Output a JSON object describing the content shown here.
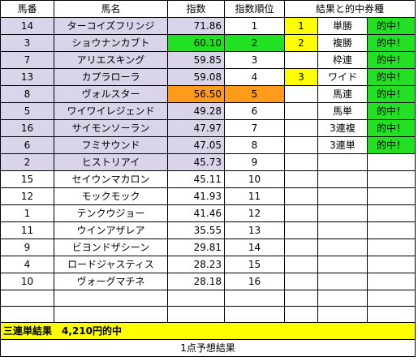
{
  "headers": {
    "number": "馬番",
    "name": "馬名",
    "index": "指数",
    "rank": "指数順位",
    "result": "結果と的中券種"
  },
  "horses": [
    {
      "no": "14",
      "name": "ターコイズフリンジ",
      "index": "71.86",
      "rank": "1",
      "highlight": "lav",
      "place": "1",
      "ticket": "単勝",
      "hit": "的中！"
    },
    {
      "no": "3",
      "name": "ショウナンカブト",
      "index": "60.10",
      "rank": "2",
      "highlight": "green",
      "place": "2",
      "ticket": "複勝",
      "hit": "的中！"
    },
    {
      "no": "7",
      "name": "アリエスキング",
      "index": "59.85",
      "rank": "3",
      "highlight": "lav",
      "place": "",
      "ticket": "枠連",
      "hit": "的中！"
    },
    {
      "no": "13",
      "name": "カプラローラ",
      "index": "59.08",
      "rank": "4",
      "highlight": "lav",
      "place": "3",
      "ticket": "ワイド",
      "hit": "的中！"
    },
    {
      "no": "8",
      "name": "ヴォルスター",
      "index": "56.50",
      "rank": "5",
      "highlight": "orange",
      "place": "",
      "ticket": "馬連",
      "hit": "的中！"
    },
    {
      "no": "5",
      "name": "ワイワイレジェンド",
      "index": "49.28",
      "rank": "6",
      "highlight": "lav",
      "place": "",
      "ticket": "馬単",
      "hit": "的中！"
    },
    {
      "no": "16",
      "name": "サイモンソーラン",
      "index": "47.97",
      "rank": "7",
      "highlight": "lav",
      "place": "",
      "ticket": "3連複",
      "hit": "的中！"
    },
    {
      "no": "6",
      "name": "フミサウンド",
      "index": "47.05",
      "rank": "8",
      "highlight": "lav",
      "place": "",
      "ticket": "3連単",
      "hit": "的中！"
    },
    {
      "no": "2",
      "name": "ヒストリアイ",
      "index": "45.73",
      "rank": "9",
      "highlight": "lav",
      "place": "",
      "ticket": "",
      "hit": ""
    },
    {
      "no": "15",
      "name": "セイウンマカロン",
      "index": "45.11",
      "rank": "10",
      "highlight": "none",
      "place": "",
      "ticket": "",
      "hit": ""
    },
    {
      "no": "12",
      "name": "モックモック",
      "index": "41.93",
      "rank": "11",
      "highlight": "none",
      "place": "",
      "ticket": "",
      "hit": ""
    },
    {
      "no": "1",
      "name": "テンクウジョー",
      "index": "41.46",
      "rank": "12",
      "highlight": "none",
      "place": "",
      "ticket": "",
      "hit": ""
    },
    {
      "no": "11",
      "name": "ウインアザレア",
      "index": "35.55",
      "rank": "13",
      "highlight": "none",
      "place": "",
      "ticket": "",
      "hit": ""
    },
    {
      "no": "9",
      "name": "ビヨンドザシーン",
      "index": "29.81",
      "rank": "14",
      "highlight": "none",
      "place": "",
      "ticket": "",
      "hit": ""
    },
    {
      "no": "4",
      "name": "ロードジャスティス",
      "index": "28.23",
      "rank": "15",
      "highlight": "none",
      "place": "",
      "ticket": "",
      "hit": ""
    },
    {
      "no": "10",
      "name": "ヴォーグマチネ",
      "index": "28.18",
      "rank": "16",
      "highlight": "none",
      "place": "",
      "ticket": "",
      "hit": ""
    }
  ],
  "summary": "三連単結果　4,210円的中",
  "footer": "1点予想結果",
  "colors": {
    "lavender": "#d9d4ea",
    "green": "#22e022",
    "orange": "#ff9a1a",
    "yellow": "#ffff00"
  }
}
